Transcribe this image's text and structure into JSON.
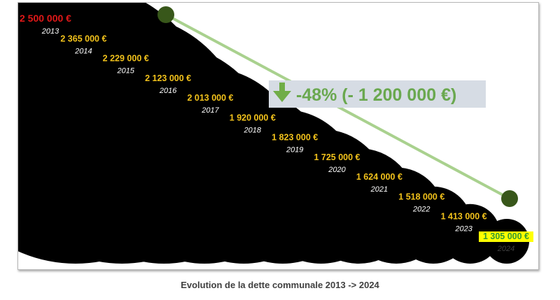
{
  "chart_data": {
    "type": "bubble",
    "title": "",
    "caption": "Evolution de la dette  communale 2013 -> 2024",
    "points": [
      {
        "year": "2013",
        "value": 2500000,
        "label": "2 500 000 €"
      },
      {
        "year": "2014",
        "value": 2365000,
        "label": "2 365 000 €"
      },
      {
        "year": "2015",
        "value": 2229000,
        "label": "2 229 000 €"
      },
      {
        "year": "2016",
        "value": 2123000,
        "label": "2 123 000 €"
      },
      {
        "year": "2017",
        "value": 2013000,
        "label": "2 013 000 €"
      },
      {
        "year": "2018",
        "value": 1920000,
        "label": "1 920 000 €"
      },
      {
        "year": "2019",
        "value": 1823000,
        "label": "1 823 000 €"
      },
      {
        "year": "2020",
        "value": 1725000,
        "label": "1 725 000 €"
      },
      {
        "year": "2021",
        "value": 1624000,
        "label": "1 624 000 €"
      },
      {
        "year": "2022",
        "value": 1518000,
        "label": "1 518 000 €"
      },
      {
        "year": "2023",
        "value": 1413000,
        "label": "1 413 000 €"
      },
      {
        "year": "2024",
        "value": 1305000,
        "label": "1 305 000 €"
      }
    ],
    "trend": {
      "label": "-48% (- 1 200 000 €)",
      "icon": "arrow-down-icon",
      "line_color": "#a9d18e",
      "dot_color": "#38571a",
      "box_color": "#d6dce4",
      "arrow_color": "#70ad47"
    },
    "colors": {
      "bubble": "#000000",
      "first_amount": "#e01818",
      "amount": "#f2c21b",
      "year": "#ffffff",
      "last_highlight": "#ffff00",
      "last_amount": "#339933",
      "last_year": "#404040"
    }
  }
}
